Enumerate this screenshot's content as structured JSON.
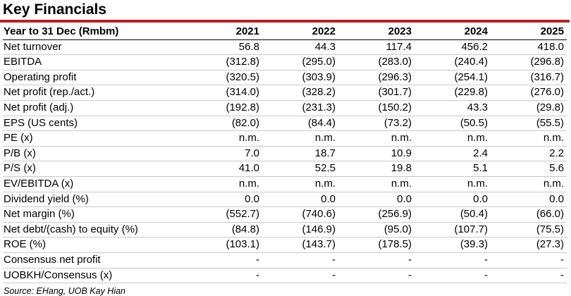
{
  "title": "Key Financials",
  "header": {
    "label": "Year to 31 Dec (Rmbm)",
    "years": [
      "2021",
      "2022",
      "2023",
      "2024",
      "2025"
    ]
  },
  "rows": [
    {
      "label": "Net turnover",
      "values": [
        "56.8",
        "44.3",
        "117.4",
        "456.2",
        "418.0"
      ]
    },
    {
      "label": "EBITDA",
      "values": [
        "(312.8)",
        "(295.0)",
        "(283.0)",
        "(240.4)",
        "(296.8)"
      ]
    },
    {
      "label": "Operating profit",
      "values": [
        "(320.5)",
        "(303.9)",
        "(296.3)",
        "(254.1)",
        "(316.7)"
      ]
    },
    {
      "label": "Net profit (rep./act.)",
      "values": [
        "(314.0)",
        "(328.2)",
        "(301.7)",
        "(229.8)",
        "(276.0)"
      ]
    },
    {
      "label": "Net profit (adj.)",
      "values": [
        "(192.8)",
        "(231.3)",
        "(150.2)",
        "43.3",
        "(29.8)"
      ]
    },
    {
      "label": "EPS (US cents)",
      "values": [
        "(82.0)",
        "(84.4)",
        "(73.2)",
        "(50.5)",
        "(55.5)"
      ]
    },
    {
      "label": "PE (x)",
      "values": [
        "n.m.",
        "n.m.",
        "n.m.",
        "n.m.",
        "n.m."
      ]
    },
    {
      "label": "P/B (x)",
      "values": [
        "7.0",
        "18.7",
        "10.9",
        "2.4",
        "2.2"
      ]
    },
    {
      "label": "P/S (x)",
      "values": [
        "41.0",
        "52.5",
        "19.8",
        "5.1",
        "5.6"
      ]
    },
    {
      "label": "EV/EBITDA (x)",
      "values": [
        "n.m.",
        "n.m.",
        "n.m.",
        "n.m.",
        "n.m."
      ]
    },
    {
      "label": "Dividend yield (%)",
      "values": [
        "0.0",
        "0.0",
        "0.0",
        "0.0",
        "0.0"
      ]
    },
    {
      "label": "Net margin (%)",
      "values": [
        "(552.7)",
        "(740.6)",
        "(256.9)",
        "(50.4)",
        "(66.0)"
      ]
    },
    {
      "label": "Net debt/(cash) to equity (%)",
      "values": [
        "(84.8)",
        "(146.9)",
        "(95.0)",
        "(107.7)",
        "(75.5)"
      ]
    },
    {
      "label": "ROE (%)",
      "values": [
        "(103.1)",
        "(143.7)",
        "(178.5)",
        "(39.3)",
        "(27.3)"
      ]
    },
    {
      "label": "Consensus net profit",
      "values": [
        "-",
        "-",
        "-",
        "-",
        "-"
      ]
    },
    {
      "label": "UOBKH/Consensus (x)",
      "values": [
        "-",
        "-",
        "-",
        "-",
        "-"
      ]
    }
  ],
  "source": "Source: EHang, UOB Kay Hian",
  "colors": {
    "title_bar": "#b8232a"
  }
}
